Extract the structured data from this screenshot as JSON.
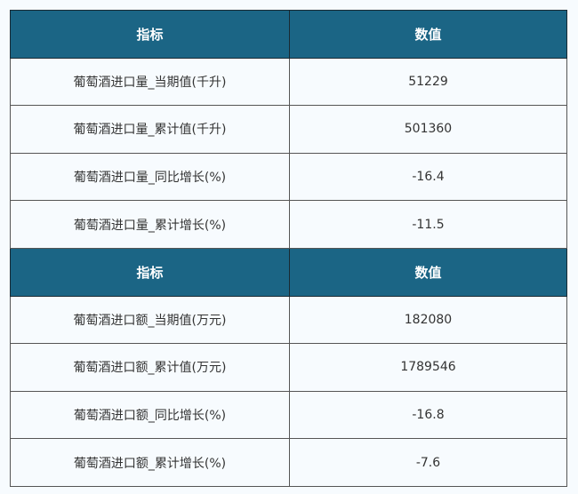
{
  "header": {
    "col1": "指标",
    "col2": "数值"
  },
  "colors": {
    "header_bg": "#1b6585",
    "header_text": "#ffffff",
    "background": "#f7fbfe"
  },
  "volume_rows": [
    {
      "label": "葡萄酒进口量_当期值(千升)",
      "value": "51229"
    },
    {
      "label": "葡萄酒进口量_累计值(千升)",
      "value": "501360"
    },
    {
      "label": "葡萄酒进口量_同比增长(%)",
      "value": "-16.4"
    },
    {
      "label": "葡萄酒进口量_累计增长(%)",
      "value": "-11.5"
    }
  ],
  "amount_rows": [
    {
      "label": "葡萄酒进口额_当期值(万元)",
      "value": "182080"
    },
    {
      "label": "葡萄酒进口额_累计值(万元)",
      "value": "1789546"
    },
    {
      "label": "葡萄酒进口额_同比增长(%)",
      "value": "-16.8"
    },
    {
      "label": "葡萄酒进口额_累计增长(%)",
      "value": "-7.6"
    }
  ]
}
